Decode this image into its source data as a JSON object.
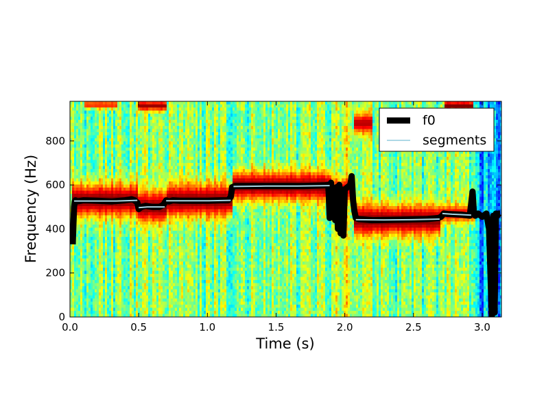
{
  "chart_data": {
    "type": "heatmap",
    "title": "",
    "xlabel": "Time (s)",
    "ylabel": "Frequency (Hz)",
    "xlim": [
      0.0,
      3.14
    ],
    "ylim": [
      0,
      980
    ],
    "x_ticks": [
      "0.0",
      "0.5",
      "1.0",
      "1.5",
      "2.0",
      "2.5",
      "3.0"
    ],
    "x_tick_values": [
      0.0,
      0.5,
      1.0,
      1.5,
      2.0,
      2.5,
      3.0
    ],
    "y_ticks": [
      "0",
      "200",
      "400",
      "600",
      "800"
    ],
    "y_tick_values": [
      0,
      200,
      400,
      600,
      800
    ],
    "colormap": "jet",
    "grid": false,
    "legend_position": "top-right",
    "legend": [
      {
        "label": "f0",
        "color": "#000000",
        "style": "thick-line"
      },
      {
        "label": "segments",
        "color": "#add8e6",
        "style": "thin-line"
      }
    ],
    "background_regions": [
      {
        "t": [
          0.0,
          0.49
        ],
        "level": "mid"
      },
      {
        "t": [
          0.49,
          0.7
        ],
        "level": "mid"
      },
      {
        "t": [
          0.7,
          1.18
        ],
        "level": "mid"
      },
      {
        "t": [
          1.18,
          1.9
        ],
        "level": "mid"
      },
      {
        "t": [
          1.9,
          2.07
        ],
        "level": "high"
      },
      {
        "t": [
          2.07,
          2.7
        ],
        "level": "mid"
      },
      {
        "t": [
          2.7,
          2.95
        ],
        "level": "mid"
      },
      {
        "t": [
          2.95,
          3.14
        ],
        "level": "low"
      }
    ],
    "spectral_bands": [
      {
        "t": [
          0.02,
          0.49
        ],
        "center": 530,
        "halfwidth": 85,
        "peak": 1.0
      },
      {
        "t": [
          0.49,
          0.7
        ],
        "center": 500,
        "halfwidth": 80,
        "peak": 1.0
      },
      {
        "t": [
          0.7,
          1.18
        ],
        "center": 530,
        "halfwidth": 85,
        "peak": 1.0
      },
      {
        "t": [
          1.18,
          1.9
        ],
        "center": 595,
        "halfwidth": 75,
        "peak": 1.0
      },
      {
        "t": [
          1.9,
          2.07
        ],
        "center": 580,
        "halfwidth": 50,
        "peak": 0.7
      },
      {
        "t": [
          2.07,
          2.7
        ],
        "center": 440,
        "halfwidth": 80,
        "peak": 1.0
      },
      {
        "t": [
          2.7,
          2.95
        ],
        "center": 470,
        "halfwidth": 45,
        "peak": 0.6
      },
      {
        "t": [
          0.5,
          0.7
        ],
        "center": 960,
        "halfwidth": 25,
        "peak": 0.9
      },
      {
        "t": [
          2.72,
          2.93
        ],
        "center": 960,
        "halfwidth": 25,
        "peak": 1.0
      },
      {
        "t": [
          2.07,
          2.2
        ],
        "center": 880,
        "halfwidth": 50,
        "peak": 0.8
      },
      {
        "t": [
          0.1,
          0.35
        ],
        "center": 965,
        "halfwidth": 20,
        "peak": 0.5
      }
    ],
    "series": [
      {
        "name": "f0",
        "color": "#000000",
        "t": [
          0.02,
          0.025,
          0.03,
          0.035,
          0.04,
          0.05,
          0.1,
          0.2,
          0.3,
          0.4,
          0.45,
          0.47,
          0.49,
          0.5,
          0.52,
          0.55,
          0.6,
          0.65,
          0.68,
          0.7,
          0.72,
          0.75,
          0.8,
          0.9,
          1.0,
          1.1,
          1.15,
          1.17,
          1.18,
          1.2,
          1.3,
          1.5,
          1.7,
          1.85,
          1.88,
          1.89,
          1.9,
          1.91,
          1.92,
          1.93,
          1.94,
          1.95,
          1.96,
          1.97,
          1.98,
          1.99,
          2.0,
          2.02,
          2.04,
          2.05,
          2.06,
          2.07,
          2.08,
          2.1,
          2.2,
          2.4,
          2.6,
          2.68,
          2.7,
          2.72,
          2.75,
          2.85,
          2.91,
          2.93,
          2.94,
          2.95,
          2.97,
          3.0,
          3.03,
          3.05,
          3.06,
          3.07,
          3.08,
          3.09,
          3.1,
          3.11,
          3.12,
          3.13
        ],
        "f": [
          330,
          420,
          500,
          525,
          530,
          525,
          530,
          528,
          525,
          530,
          535,
          530,
          520,
          490,
          500,
          505,
          500,
          500,
          510,
          530,
          525,
          530,
          528,
          528,
          528,
          530,
          530,
          545,
          590,
          595,
          595,
          595,
          595,
          598,
          600,
          450,
          610,
          470,
          580,
          440,
          590,
          400,
          600,
          380,
          580,
          370,
          580,
          590,
          600,
          640,
          530,
          480,
          450,
          445,
          440,
          442,
          445,
          450,
          455,
          470,
          468,
          465,
          460,
          570,
          470,
          460,
          470,
          455,
          470,
          400,
          200,
          0,
          460,
          20,
          470,
          460,
          470,
          470
        ]
      },
      {
        "name": "segments",
        "color": "#add8e6",
        "segments": [
          {
            "t": [
              0.03,
              0.49
            ],
            "f": [
              527,
              527,
              527,
              530
            ]
          },
          {
            "t": [
              0.5,
              0.69
            ],
            "f": [
              497,
              500,
              500,
              500
            ]
          },
          {
            "t": [
              0.7,
              1.17
            ],
            "f": [
              528,
              528,
              528,
              530
            ]
          },
          {
            "t": [
              1.19,
              1.89
            ],
            "f": [
              593,
              595,
              595,
              597
            ]
          },
          {
            "t": [
              2.08,
              2.69
            ],
            "f": [
              442,
              441,
              442,
              445
            ]
          },
          {
            "t": [
              2.71,
              2.92
            ],
            "f": [
              470,
              467,
              465,
              463
            ]
          }
        ]
      }
    ]
  }
}
